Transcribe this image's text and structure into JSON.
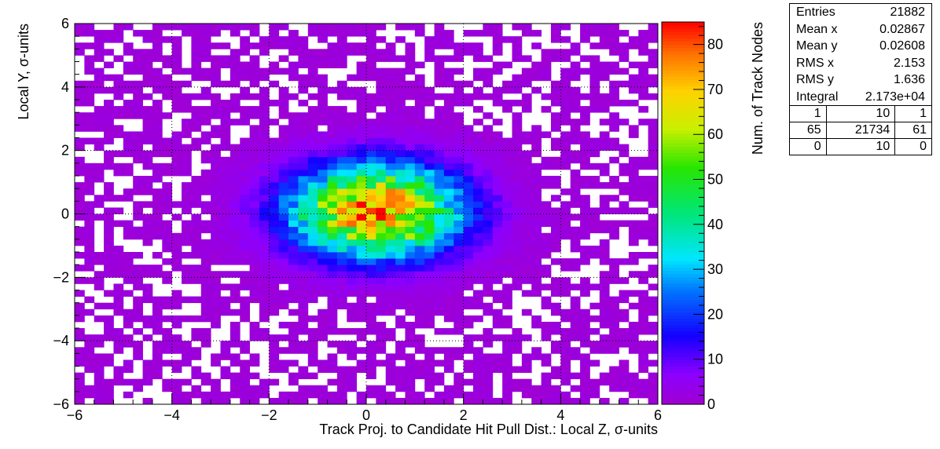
{
  "chart_data": {
    "type": "heatmap",
    "title": "",
    "xlabel": "Track Proj. to Candidate Hit Pull Dist.: Local Z, σ-units",
    "ylabel": "Local Y, σ-units",
    "zlabel": "Num. of Track Nodes",
    "xlim": [
      -6,
      6
    ],
    "ylim": [
      -6,
      6
    ],
    "zlim": [
      0,
      85
    ],
    "x_ticks": [
      "−6",
      "−4",
      "−2",
      "0",
      "2",
      "4",
      "6"
    ],
    "y_ticks": [
      "−6",
      "−4",
      "−2",
      "0",
      "2",
      "4",
      "6"
    ],
    "z_ticks": [
      "0",
      "10",
      "20",
      "30",
      "40",
      "50",
      "60",
      "70",
      "80"
    ],
    "x_bins": 60,
    "y_bins": 60,
    "grid": true,
    "palette": [
      "#ff0000",
      "#ffd700",
      "#00dd00",
      "#00ffff",
      "#0000ff",
      "#8c00ff",
      "#a000d0"
    ],
    "peak": {
      "x": 0.2,
      "y": 0.1,
      "value": 85
    },
    "sigma_x": 2.15,
    "sigma_y": 1.64
  },
  "stats": {
    "rows": [
      {
        "label": "Entries",
        "value": "21882"
      },
      {
        "label": "Mean x",
        "value": "0.02867"
      },
      {
        "label": "Mean y",
        "value": "0.02608"
      },
      {
        "label": "RMS x",
        "value": "2.153"
      },
      {
        "label": "RMS y",
        "value": "1.636"
      },
      {
        "label": "Integral",
        "value": "2.173e+04"
      }
    ],
    "grid": [
      [
        "1",
        "10",
        "1"
      ],
      [
        "65",
        "21734",
        "61"
      ],
      [
        "0",
        "10",
        "0"
      ]
    ]
  }
}
